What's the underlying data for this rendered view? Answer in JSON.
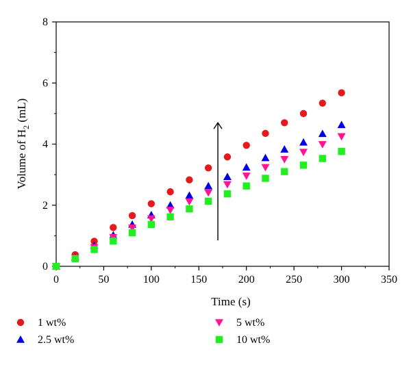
{
  "chart_data": {
    "type": "scatter",
    "xlabel": "Time (s)",
    "ylabel": "Volume of H",
    "ylabel_subscript": "2",
    "ylabel_suffix": " (mL)",
    "xlim": [
      0,
      350
    ],
    "ylim": [
      0,
      8
    ],
    "xticks": [
      0,
      50,
      100,
      150,
      200,
      250,
      300,
      350
    ],
    "yticks": [
      0,
      2,
      4,
      6,
      8
    ],
    "grid": false,
    "legend_position": "bottom",
    "x": [
      0,
      20,
      40,
      60,
      80,
      100,
      120,
      140,
      160,
      180,
      200,
      220,
      240,
      260,
      280,
      300
    ],
    "series": [
      {
        "name": "1 wt%",
        "marker": "circle",
        "color": "#e41a1c",
        "values": [
          0,
          0.38,
          0.82,
          1.27,
          1.66,
          2.05,
          2.44,
          2.83,
          3.22,
          3.58,
          3.96,
          4.35,
          4.7,
          5.0,
          5.34,
          5.68
        ]
      },
      {
        "name": "2.5 wt%",
        "marker": "triangle-up",
        "color": "#0000e6",
        "values": [
          0,
          0.3,
          0.68,
          1.02,
          1.37,
          1.68,
          2.0,
          2.32,
          2.63,
          2.93,
          3.24,
          3.55,
          3.83,
          4.06,
          4.34,
          4.63
        ]
      },
      {
        "name": "5 wt%",
        "marker": "triangle-down",
        "color": "#ff1493",
        "values": [
          0,
          0.28,
          0.62,
          0.95,
          1.26,
          1.56,
          1.84,
          2.12,
          2.41,
          2.68,
          2.96,
          3.24,
          3.5,
          3.74,
          3.99,
          4.25
        ]
      },
      {
        "name": "10 wt%",
        "marker": "square",
        "color": "#22ee22",
        "values": [
          0,
          0.25,
          0.55,
          0.83,
          1.1,
          1.37,
          1.62,
          1.88,
          2.13,
          2.37,
          2.63,
          2.88,
          3.1,
          3.31,
          3.53,
          3.76
        ]
      }
    ],
    "annotation": {
      "type": "arrow",
      "x": 170,
      "y_from": 0.85,
      "y_to": 4.7
    }
  }
}
